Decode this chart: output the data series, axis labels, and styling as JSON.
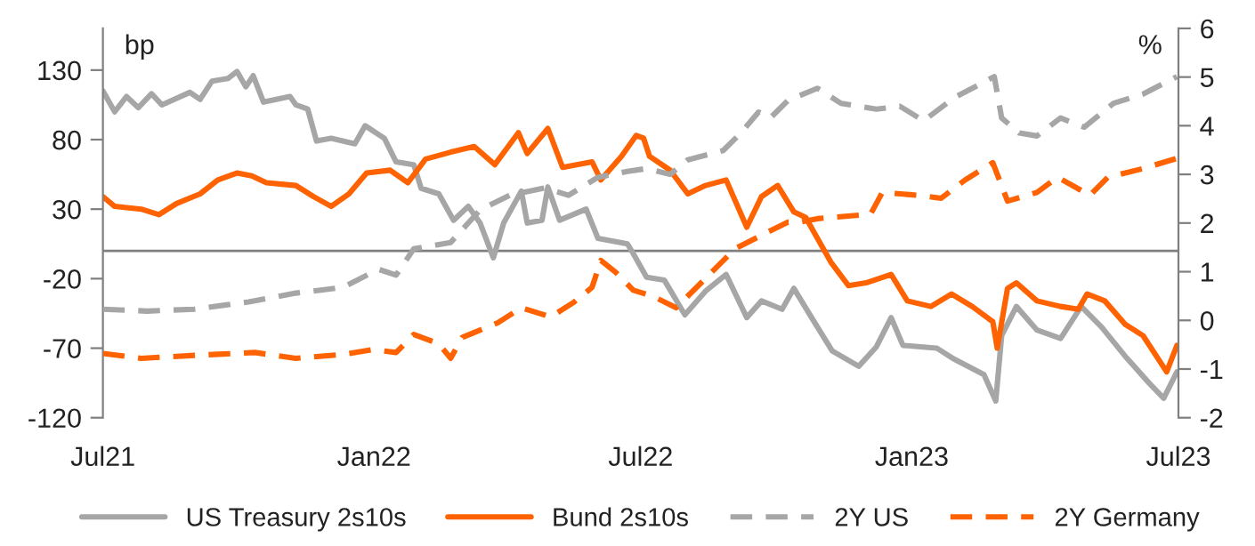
{
  "chart_data": {
    "type": "line",
    "ylabel": "bp",
    "y2label": "%",
    "xlim": [
      "2021-07-01",
      "2023-07-01"
    ],
    "xticks": [
      {
        "value": "2021-07-01",
        "label": "Jul21"
      },
      {
        "value": "2022-01-01",
        "label": "Jan22"
      },
      {
        "value": "2022-07-01",
        "label": "Jul22"
      },
      {
        "value": "2023-01-01",
        "label": "Jan23"
      },
      {
        "value": "2023-07-01",
        "label": "Jul23"
      }
    ],
    "ylim": [
      -120,
      160
    ],
    "yticks": [
      -120,
      -70,
      -20,
      30,
      80,
      130
    ],
    "y2lim": [
      -2,
      6
    ],
    "y2ticks": [
      -2,
      -1,
      0,
      1,
      2,
      3,
      4,
      5,
      6
    ],
    "grid": false,
    "legend": "bottom",
    "ref_lines": [
      {
        "axis": "y",
        "value": 0,
        "color": "#7f7f7f"
      }
    ],
    "series": [
      {
        "name": "US Treasury 2s10s",
        "color": "#a6a6a6",
        "line_style": "solid",
        "x": [
          "2021-07-01",
          "2021-07-09",
          "2021-07-17",
          "2021-07-25",
          "2021-08-03",
          "2021-08-10",
          "2021-08-29",
          "2021-09-05",
          "2021-09-13",
          "2021-09-24",
          "2021-09-30",
          "2021-10-06",
          "2021-10-11",
          "2021-10-18",
          "2021-11-05",
          "2021-11-09",
          "2021-11-17",
          "2021-11-23",
          "2021-12-03",
          "2021-12-19",
          "2021-12-26",
          "2022-01-08",
          "2022-01-16",
          "2022-01-28",
          "2022-02-02",
          "2022-02-14",
          "2022-02-24",
          "2022-03-06",
          "2022-03-14",
          "2022-03-23",
          "2022-03-30",
          "2022-04-11",
          "2022-04-15",
          "2022-04-25",
          "2022-04-29",
          "2022-05-07",
          "2022-05-25",
          "2022-06-02",
          "2022-06-22",
          "2022-06-26",
          "2022-07-05",
          "2022-07-17",
          "2022-07-31",
          "2022-08-14",
          "2022-08-28",
          "2022-09-11",
          "2022-09-21",
          "2022-10-05",
          "2022-10-13",
          "2022-10-25",
          "2022-11-08",
          "2022-11-26",
          "2022-12-08",
          "2022-12-18",
          "2022-12-26",
          "2023-01-18",
          "2023-01-30",
          "2023-02-19",
          "2023-02-27",
          "2023-03-03",
          "2023-03-13",
          "2023-03-27",
          "2023-04-12",
          "2023-04-26",
          "2023-05-10",
          "2023-05-26",
          "2023-06-11",
          "2023-06-21",
          "2023-06-30"
        ],
        "values": [
          115,
          100,
          111,
          103,
          113,
          105,
          114,
          109,
          122,
          124,
          129,
          118,
          126,
          107,
          111,
          105,
          102,
          79,
          81,
          77,
          90,
          81,
          64,
          62,
          45,
          41,
          22,
          32,
          20,
          -5,
          20,
          43,
          20,
          22,
          46,
          22,
          30,
          9,
          5,
          -2,
          -19,
          -21,
          -46,
          -29,
          -17,
          -48,
          -36,
          -42,
          -27,
          -48,
          -72,
          -83,
          -69,
          -48,
          -68,
          -70,
          -78,
          -89,
          -108,
          -61,
          -40,
          -57,
          -63,
          -40,
          -55,
          -76,
          -95,
          -106,
          -87
        ]
      },
      {
        "name": "Bund 2s10s",
        "color": "#ff6200",
        "line_style": "solid",
        "x": [
          "2021-07-01",
          "2021-07-09",
          "2021-07-27",
          "2021-08-08",
          "2021-08-20",
          "2021-09-05",
          "2021-09-17",
          "2021-09-30",
          "2021-10-10",
          "2021-10-20",
          "2021-11-09",
          "2021-11-21",
          "2021-12-03",
          "2021-12-15",
          "2021-12-27",
          "2022-01-12",
          "2022-01-24",
          "2022-02-05",
          "2022-02-22",
          "2022-03-10",
          "2022-03-24",
          "2022-04-09",
          "2022-04-15",
          "2022-04-29",
          "2022-05-09",
          "2022-05-29",
          "2022-06-04",
          "2022-06-18",
          "2022-06-28",
          "2022-07-03",
          "2022-07-07",
          "2022-07-21",
          "2022-08-02",
          "2022-08-14",
          "2022-08-28",
          "2022-09-11",
          "2022-09-21",
          "2022-10-02",
          "2022-10-13",
          "2022-10-21",
          "2022-11-07",
          "2022-11-19",
          "2022-12-01",
          "2022-12-18",
          "2022-12-29",
          "2023-01-14",
          "2023-01-28",
          "2023-02-11",
          "2023-02-25",
          "2023-02-28",
          "2023-03-07",
          "2023-03-13",
          "2023-03-27",
          "2023-04-12",
          "2023-04-24",
          "2023-04-30",
          "2023-05-12",
          "2023-05-26",
          "2023-06-07",
          "2023-06-23",
          "2023-06-30"
        ],
        "values": [
          39,
          32,
          30,
          26,
          34,
          41,
          51,
          56,
          54,
          49,
          47,
          39,
          32,
          41,
          56,
          58,
          49,
          66,
          71,
          75,
          62,
          85,
          70,
          88,
          60,
          64,
          51,
          68,
          83,
          81,
          68,
          58,
          41,
          47,
          51,
          17,
          39,
          47,
          28,
          24,
          -8,
          -25,
          -23,
          -17,
          -36,
          -40,
          -31,
          -40,
          -51,
          -70,
          -27,
          -23,
          -36,
          -40,
          -42,
          -31,
          -36,
          -53,
          -61,
          -87,
          -68
        ]
      },
      {
        "name": "2Y US",
        "color": "#a6a6a6",
        "line_style": "dashed",
        "axis": "y2",
        "x": [
          "2021-07-01",
          "2021-07-31",
          "2021-09-01",
          "2021-10-08",
          "2021-11-09",
          "2021-12-11",
          "2022-01-04",
          "2022-01-16",
          "2022-01-28",
          "2022-02-22",
          "2022-03-14",
          "2022-04-03",
          "2022-04-27",
          "2022-05-13",
          "2022-06-02",
          "2022-06-22",
          "2022-07-05",
          "2022-07-21",
          "2022-08-02",
          "2022-08-26",
          "2022-09-07",
          "2022-09-19",
          "2022-09-27",
          "2022-10-09",
          "2022-10-29",
          "2022-11-14",
          "2022-12-08",
          "2022-12-24",
          "2023-01-09",
          "2023-01-30",
          "2023-02-15",
          "2023-02-26",
          "2023-03-03",
          "2023-03-15",
          "2023-03-27",
          "2023-04-12",
          "2023-04-28",
          "2023-05-18",
          "2023-06-07",
          "2023-06-30"
        ],
        "values": [
          0.23,
          0.19,
          0.23,
          0.38,
          0.56,
          0.68,
          1.05,
          0.93,
          1.47,
          1.6,
          2.27,
          2.57,
          2.72,
          2.57,
          2.94,
          3.06,
          3.12,
          3.0,
          3.3,
          3.49,
          3.85,
          4.28,
          4.16,
          4.52,
          4.77,
          4.46,
          4.34,
          4.4,
          4.1,
          4.58,
          4.83,
          5.01,
          4.16,
          3.85,
          3.79,
          4.16,
          3.97,
          4.46,
          4.65,
          5.01
        ]
      },
      {
        "name": "2Y Germany",
        "color": "#ff6200",
        "line_style": "dashed",
        "axis": "y2",
        "x": [
          "2021-07-01",
          "2021-07-27",
          "2021-09-01",
          "2021-10-12",
          "2021-11-09",
          "2021-12-11",
          "2021-12-31",
          "2022-01-16",
          "2022-01-28",
          "2022-02-14",
          "2022-02-22",
          "2022-03-02",
          "2022-03-26",
          "2022-04-11",
          "2022-05-01",
          "2022-05-17",
          "2022-05-29",
          "2022-06-04",
          "2022-06-14",
          "2022-06-26",
          "2022-07-09",
          "2022-07-25",
          "2022-08-10",
          "2022-09-03",
          "2022-09-23",
          "2022-10-09",
          "2022-10-17",
          "2022-10-29",
          "2022-12-04",
          "2022-12-12",
          "2023-01-05",
          "2023-01-21",
          "2023-02-06",
          "2023-02-25",
          "2023-03-07",
          "2023-03-27",
          "2023-04-10",
          "2023-05-02",
          "2023-05-14",
          "2023-06-07",
          "2023-06-30"
        ],
        "values": [
          -0.68,
          -0.78,
          -0.72,
          -0.66,
          -0.78,
          -0.7,
          -0.6,
          -0.66,
          -0.29,
          -0.48,
          -0.78,
          -0.35,
          -0.05,
          0.26,
          0.07,
          0.38,
          0.68,
          1.23,
          0.99,
          0.62,
          0.5,
          0.26,
          0.74,
          1.47,
          1.78,
          2.02,
          2.02,
          2.09,
          2.18,
          2.63,
          2.57,
          2.51,
          2.88,
          3.24,
          2.45,
          2.63,
          2.94,
          2.57,
          2.94,
          3.12,
          3.33
        ]
      }
    ]
  }
}
